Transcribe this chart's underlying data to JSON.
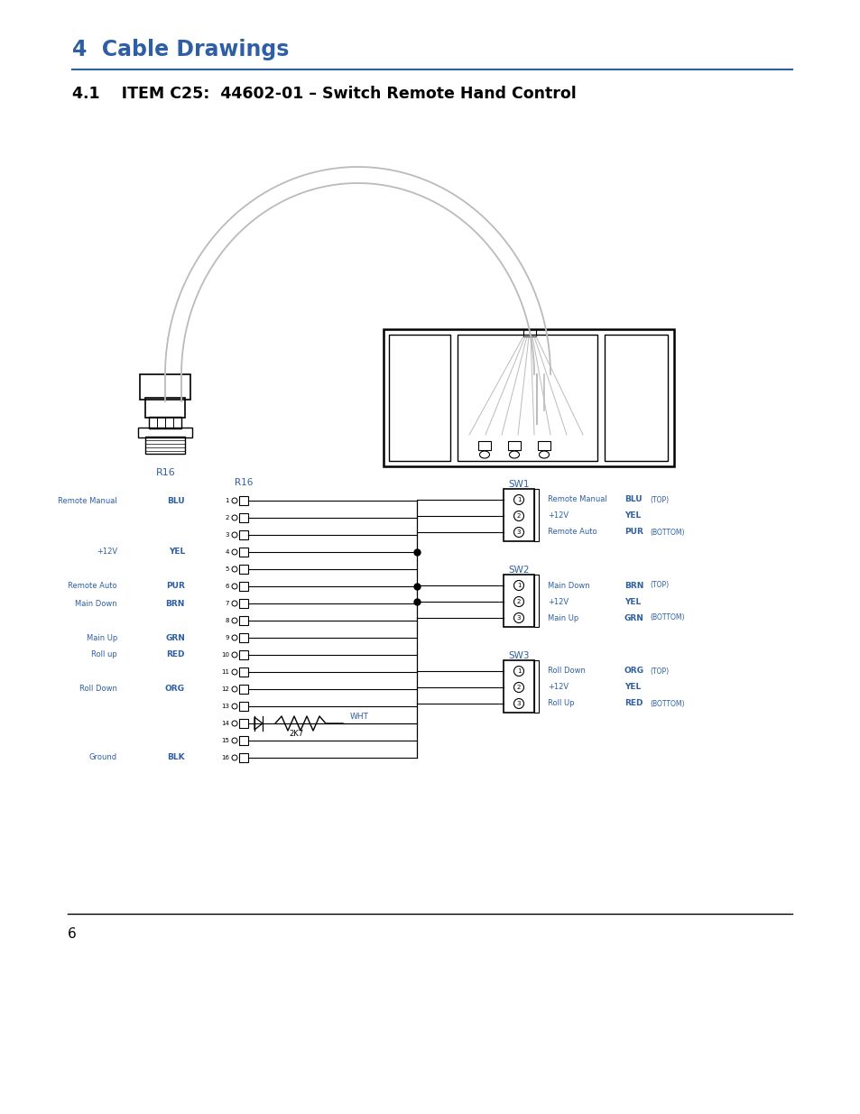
{
  "title1": "4  Cable Drawings",
  "title2": "4.1    ITEM C25:  44602-01 – Switch Remote Hand Control",
  "page_number": "6",
  "blue_color": "#2E5FA3",
  "black": "#000000",
  "light_gray": "#BBBBBB",
  "mid_gray": "#999999",
  "bg_color": "#FFFFFF",
  "line_sep_color": "#000000"
}
